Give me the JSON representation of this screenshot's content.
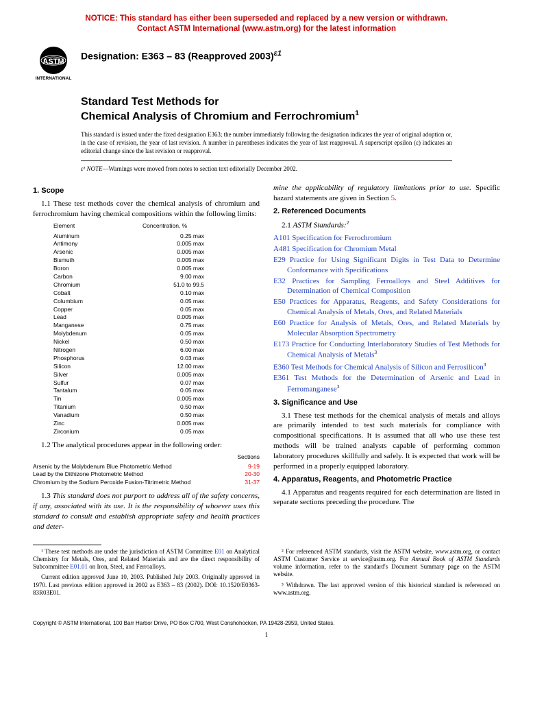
{
  "notice": {
    "color": "#cc0000",
    "line1": "NOTICE: This standard has either been superseded and replaced by a new version or withdrawn.",
    "line2": "Contact ASTM International (www.astm.org) for the latest information"
  },
  "logo": {
    "top_text": "ASTM",
    "bottom_text": "INTERNATIONAL"
  },
  "designation": {
    "label": "Designation: E363 – 83 (Reapproved 2003)",
    "superscript": "ε1"
  },
  "title": {
    "line1": "Standard Test Methods for",
    "line2": "Chemical Analysis of Chromium and Ferrochromium",
    "super": "1"
  },
  "issuance": "This standard is issued under the fixed designation E363; the number immediately following the designation indicates the year of original adoption or, in the case of revision, the year of last revision. A number in parentheses indicates the year of last reapproval. A superscript epsilon (ε) indicates an editorial change since the last revision or reapproval.",
  "eps_note": {
    "label": "ε¹ NOTE",
    "text": "—Warnings were moved from notes to section text editorially December 2002."
  },
  "scope": {
    "heading": "1. Scope",
    "p11": "1.1 These test methods cover the chemical analysis of chromium and ferrochromium having chemical compositions within the following limits:",
    "elem_header_left": "Element",
    "elem_header_right": "Concentration, %",
    "elements": [
      {
        "e": "Aluminum",
        "c": "0.25 max"
      },
      {
        "e": "Antimony",
        "c": "0.005 max"
      },
      {
        "e": "Arsenic",
        "c": "0.005 max"
      },
      {
        "e": "Bismuth",
        "c": "0.005 max"
      },
      {
        "e": "Boron",
        "c": "0.005 max"
      },
      {
        "e": "Carbon",
        "c": "9.00 max"
      },
      {
        "e": "Chromium",
        "c": "51.0 to 99.5"
      },
      {
        "e": "Cobalt",
        "c": "0.10 max"
      },
      {
        "e": "Columbium",
        "c": "0.05 max"
      },
      {
        "e": "Copper",
        "c": "0.05 max"
      },
      {
        "e": "Lead",
        "c": "0.005 max"
      },
      {
        "e": "Manganese",
        "c": "0.75 max"
      },
      {
        "e": "Molybdenum",
        "c": "0.05 max"
      },
      {
        "e": "Nickel",
        "c": "0.50 max"
      },
      {
        "e": "Nitrogen",
        "c": "6.00 max"
      },
      {
        "e": "Phosphorus",
        "c": "0.03 max"
      },
      {
        "e": "Silicon",
        "c": "12.00 max"
      },
      {
        "e": "Silver",
        "c": "0.005 max"
      },
      {
        "e": "Sulfur",
        "c": "0.07 max"
      },
      {
        "e": "Tantalum",
        "c": "0.05 max"
      },
      {
        "e": "Tin",
        "c": "0.005 max"
      },
      {
        "e": "Titanium",
        "c": "0.50 max"
      },
      {
        "e": "Vanadium",
        "c": "0.50 max"
      },
      {
        "e": "Zinc",
        "c": "0.005 max"
      },
      {
        "e": "Zirconium",
        "c": "0.05 max"
      }
    ],
    "p12": "1.2  The analytical procedures appear in the following order:",
    "proc_header": "Sections",
    "procedures": [
      {
        "name": "Arsenic by the Molybdenum Blue Photometric Method",
        "sec": "9-19"
      },
      {
        "name": "Lead by the Dithizone Photometric Method",
        "sec": "20-30"
      },
      {
        "name": "Chromium by the Sodium Peroxide Fusion-Titrimetric Method",
        "sec": "31-37"
      }
    ],
    "p13a": "1.3 ",
    "p13b": "This standard does not purport to address all of the safety concerns, if any, associated with its use. It is the responsibility of whoever uses this standard to consult and establish appropriate safety and health practices and deter-",
    "p13c_right": "mine the applicability of regulatory limitations prior to use.",
    "p13d": " Specific hazard statements are given in Section ",
    "p13d_link": "5",
    "p13e": "."
  },
  "refs": {
    "heading": "2. Referenced Documents",
    "p21a": "2.1 ",
    "p21b": "ASTM Standards:",
    "p21sup": "2",
    "items": [
      {
        "code": "A101",
        "text": "Specification for Ferrochromium",
        "sup": ""
      },
      {
        "code": "A481",
        "text": "Specification for Chromium Metal",
        "sup": ""
      },
      {
        "code": "E29",
        "text": "Practice for Using Significant Digits in Test Data to Determine Conformance with Specifications",
        "sup": ""
      },
      {
        "code": "E32",
        "text": "Practices for Sampling Ferroalloys and Steel Additives for Determination of Chemical Composition",
        "sup": ""
      },
      {
        "code": "E50",
        "text": "Practices for Apparatus, Reagents, and Safety Considerations for Chemical Analysis of Metals, Ores, and Related Materials",
        "sup": ""
      },
      {
        "code": "E60",
        "text": "Practice for Analysis of Metals, Ores, and Related Materials by Molecular Absorption Spectrometry",
        "sup": ""
      },
      {
        "code": "E173",
        "text": "Practice for Conducting Interlaboratory Studies of Test Methods for Chemical Analysis of Metals",
        "sup": "3"
      },
      {
        "code": "E360",
        "text": "Test Methods for Chemical Analysis of Silicon and Ferrosilicon",
        "sup": "3"
      },
      {
        "code": "E361",
        "text": "Test Methods for the Determination of Arsenic and Lead in Ferromanganese",
        "sup": "3"
      }
    ]
  },
  "sig": {
    "heading": "3. Significance and Use",
    "p31": "3.1 These test methods for the chemical analysis of metals and alloys are primarily intended to test such materials for compliance with compositional specifications. It is assumed that all who use these test methods will be trained analysts capable of performing common laboratory procedures skillfully and safely. It is expected that work will be performed in a properly equipped laboratory."
  },
  "apparatus": {
    "heading": "4. Apparatus, Reagents, and Photometric Practice",
    "p41": "4.1 Apparatus and reagents required for each determination are listed in separate sections preceding the procedure. The"
  },
  "footnotes": {
    "left_a": "¹ These test methods are under the jurisdiction of ASTM Committee ",
    "left_link1": "E01",
    "left_b": " on Analytical Chemistry for Metals, Ores, and Related Materials and are the direct responsibility of Subcommittee ",
    "left_link2": "E01.01",
    "left_c": " on Iron, Steel, and Ferroalloys.",
    "left_p2": "Current edition approved June 10, 2003. Published July 2003. Originally approved in 1970. Last previous edition approved in 2002 as E363 – 83 (2002). DOI: 10.1520/E0363-83R03E01.",
    "right_a": "² For referenced ASTM standards, visit the ASTM website, www.astm.org, or contact ASTM Customer Service at service@astm.org. For ",
    "right_b": "Annual Book of ASTM Standards",
    "right_c": " volume information, refer to the standard's Document Summary page on the ASTM website.",
    "right_p2": "³ Withdrawn. The last approved version of this historical standard is referenced on www.astm.org."
  },
  "copyright": "Copyright © ASTM International, 100 Barr Harbor Drive, PO Box C700, West Conshohocken, PA 19428-2959, United States.",
  "page_number": "1"
}
